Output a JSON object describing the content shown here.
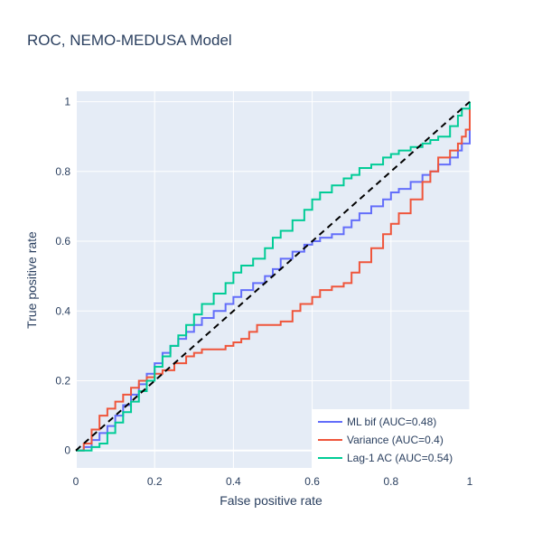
{
  "chart_data": {
    "type": "line",
    "title": "ROC, NEMO-MEDUSA Model",
    "xlabel": "False positive rate",
    "ylabel": "True positive rate",
    "xlim": [
      0,
      1
    ],
    "ylim": [
      -0.05,
      1.03
    ],
    "x_ticks": [
      0,
      0.2,
      0.4,
      0.6,
      0.8,
      1
    ],
    "y_ticks": [
      0,
      0.2,
      0.4,
      0.6,
      0.8,
      1
    ],
    "x_tick_labels": [
      "0",
      "0.2",
      "0.4",
      "0.6",
      "0.8",
      "1"
    ],
    "y_tick_labels": [
      "0",
      "0.2",
      "0.4",
      "0.6",
      "0.8",
      "1"
    ],
    "grid": true,
    "legend_position": "bottom-right",
    "background_color": "#e5ecf6",
    "series": [
      {
        "name": "ML bif (AUC=0.48)",
        "color": "#636efa",
        "x": [
          0,
          0.02,
          0.04,
          0.06,
          0.08,
          0.1,
          0.12,
          0.14,
          0.16,
          0.18,
          0.2,
          0.22,
          0.24,
          0.26,
          0.28,
          0.3,
          0.32,
          0.35,
          0.38,
          0.4,
          0.42,
          0.45,
          0.48,
          0.5,
          0.52,
          0.55,
          0.58,
          0.6,
          0.62,
          0.65,
          0.68,
          0.7,
          0.72,
          0.75,
          0.78,
          0.8,
          0.82,
          0.85,
          0.88,
          0.9,
          0.92,
          0.95,
          0.97,
          0.98,
          1,
          1
        ],
        "y": [
          0,
          0.01,
          0.03,
          0.05,
          0.07,
          0.1,
          0.13,
          0.16,
          0.19,
          0.22,
          0.25,
          0.28,
          0.3,
          0.32,
          0.34,
          0.36,
          0.38,
          0.4,
          0.42,
          0.44,
          0.46,
          0.48,
          0.5,
          0.52,
          0.55,
          0.57,
          0.59,
          0.6,
          0.61,
          0.62,
          0.64,
          0.66,
          0.68,
          0.7,
          0.72,
          0.74,
          0.75,
          0.77,
          0.79,
          0.8,
          0.82,
          0.84,
          0.86,
          0.88,
          0.9,
          0.92
        ]
      },
      {
        "name": "Variance (AUC=0.4)",
        "color": "#ef553b",
        "x": [
          0,
          0.02,
          0.04,
          0.06,
          0.08,
          0.1,
          0.12,
          0.14,
          0.16,
          0.18,
          0.2,
          0.22,
          0.25,
          0.28,
          0.3,
          0.32,
          0.35,
          0.38,
          0.4,
          0.42,
          0.44,
          0.46,
          0.48,
          0.5,
          0.52,
          0.55,
          0.57,
          0.6,
          0.62,
          0.65,
          0.68,
          0.7,
          0.72,
          0.75,
          0.78,
          0.8,
          0.82,
          0.85,
          0.88,
          0.9,
          0.92,
          0.95,
          0.97,
          0.98,
          0.99,
          1,
          1
        ],
        "y": [
          0,
          0.02,
          0.06,
          0.1,
          0.12,
          0.14,
          0.16,
          0.18,
          0.2,
          0.21,
          0.22,
          0.23,
          0.25,
          0.27,
          0.28,
          0.29,
          0.29,
          0.3,
          0.31,
          0.32,
          0.34,
          0.36,
          0.36,
          0.36,
          0.37,
          0.4,
          0.42,
          0.44,
          0.46,
          0.47,
          0.48,
          0.51,
          0.54,
          0.58,
          0.62,
          0.65,
          0.68,
          0.72,
          0.77,
          0.8,
          0.84,
          0.86,
          0.88,
          0.9,
          0.92,
          0.95,
          1
        ]
      },
      {
        "name": "Lag-1 AC (AUC=0.54)",
        "color": "#00cc96",
        "x": [
          0,
          0.02,
          0.04,
          0.06,
          0.08,
          0.1,
          0.12,
          0.14,
          0.16,
          0.18,
          0.2,
          0.22,
          0.24,
          0.26,
          0.28,
          0.3,
          0.32,
          0.35,
          0.38,
          0.4,
          0.42,
          0.45,
          0.48,
          0.5,
          0.52,
          0.55,
          0.58,
          0.6,
          0.62,
          0.65,
          0.68,
          0.7,
          0.72,
          0.75,
          0.78,
          0.8,
          0.82,
          0.85,
          0.88,
          0.9,
          0.92,
          0.95,
          0.97,
          0.98,
          1
        ],
        "y": [
          0,
          0,
          0.01,
          0.02,
          0.05,
          0.08,
          0.11,
          0.14,
          0.17,
          0.2,
          0.24,
          0.27,
          0.3,
          0.33,
          0.36,
          0.39,
          0.42,
          0.45,
          0.48,
          0.51,
          0.53,
          0.55,
          0.58,
          0.61,
          0.63,
          0.66,
          0.69,
          0.72,
          0.74,
          0.76,
          0.78,
          0.79,
          0.81,
          0.82,
          0.84,
          0.85,
          0.86,
          0.87,
          0.88,
          0.89,
          0.9,
          0.93,
          0.96,
          0.98,
          1
        ]
      }
    ],
    "reference_line": {
      "x": [
        0,
        1
      ],
      "y": [
        0,
        1
      ],
      "color": "#000000",
      "dash": true
    }
  }
}
